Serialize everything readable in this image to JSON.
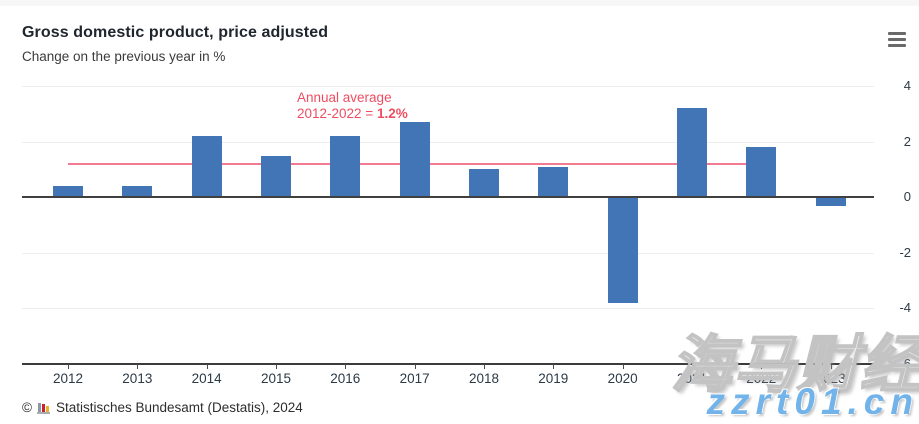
{
  "header": {
    "title": "Gross domestic product, price adjusted",
    "subtitle": "Change on the previous year in %",
    "menu_icon": "hamburger-menu-icon"
  },
  "chart_data": {
    "type": "bar",
    "title": "Gross domestic product, price adjusted",
    "ylabel": "Change on the previous year in %",
    "categories": [
      "2012",
      "2013",
      "2014",
      "2015",
      "2016",
      "2017",
      "2018",
      "2019",
      "2020",
      "2021",
      "2022",
      "2023"
    ],
    "values": [
      0.4,
      0.4,
      2.2,
      1.5,
      2.2,
      2.7,
      1.0,
      1.1,
      -3.8,
      3.2,
      1.8,
      -0.3
    ],
    "bar_color": "#4175b5",
    "yticks": [
      4,
      2,
      0,
      -2,
      -4,
      -6
    ],
    "ylim": [
      -6,
      4
    ],
    "grid": true,
    "legend_position": "none",
    "average_line": {
      "value": 1.2,
      "from_category": "2012",
      "to_category": "2022",
      "color": "#f27b92"
    },
    "annotation": {
      "line1": "Annual average",
      "line2_prefix": "2012-2022 = ",
      "value": "1.2%",
      "color": "#ee4d61"
    }
  },
  "footer": {
    "copyright": "©",
    "source": "Statistisches Bundesamt (Destatis), 2024",
    "logo": "destatis-mini-bar-chart-logo"
  },
  "watermark": {
    "line1": "海马财经",
    "line2": "zzrt01.cn"
  }
}
